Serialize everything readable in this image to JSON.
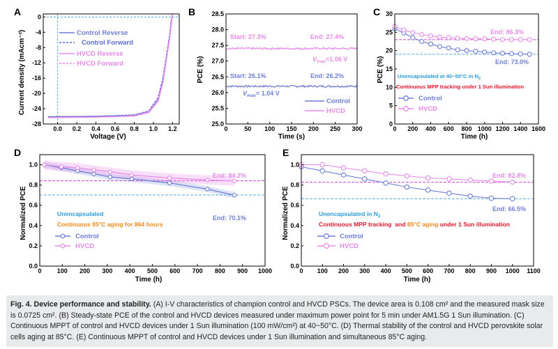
{
  "figure": {
    "caption": {
      "title": "Fig. 4. Device performance and stability.",
      "text": "(A) I-V characteristics of champion control and HVCD PSCs. The device area is 0.108 cm² and the measured mask size is 0.0725 cm². (B) Steady-state PCE of the control and HVCD devices measured under maximum power point for 5 min under AM1.5G 1 Sun illumination. (C) Continuous MPPT of control and HVCD devices under 1 Sun illumination (100 mW/cm²) at 40~50°C. (D) Thermal stability of the control and HVCD perovskite solar cells aging at 85°C. (E) Continuous MPPT of control and HVCD devices under 1 Sun illumination and simultaneous 85°C aging."
    },
    "colors": {
      "control": "#6f7fd6",
      "hvcd": "#e58ae8",
      "control_ref": "#5aa9e6",
      "hvcd_ref": "#d93fd9",
      "note_blue": "#2b9bd8",
      "note_red": "#e0152b",
      "note_orange": "#f08a1c"
    }
  },
  "chart_data": [
    {
      "panel": "A",
      "type": "line",
      "xlabel": "Voltage (V)",
      "ylabel": "Current density (mAcm⁻²)",
      "xlim": [
        -0.15,
        1.27
      ],
      "ylim": [
        -28,
        0.8
      ],
      "xticks": [
        "0.0",
        "0.2",
        "0.4",
        "0.6",
        "0.8",
        "1.0",
        "1.2"
      ],
      "yticks": [
        "0",
        "-4",
        "-8",
        "-12",
        "-16",
        "-20",
        "-24",
        "-28"
      ],
      "legend": [
        "Control Reverse",
        "Control Forward",
        "HVCD Reverse",
        "HVCD Forward"
      ],
      "series": [
        {
          "name": "Control Reverse",
          "x": [
            -0.1,
            0.4,
            0.8,
            0.95,
            1.05,
            1.1,
            1.14,
            1.17,
            1.19,
            1.2
          ],
          "y": [
            -26.1,
            -26.0,
            -25.7,
            -24.8,
            -21.5,
            -16.5,
            -10,
            -5,
            -1,
            0.8
          ]
        },
        {
          "name": "Control Forward",
          "x": [
            -0.1,
            0.4,
            0.8,
            0.95,
            1.05,
            1.1,
            1.14,
            1.17,
            1.185,
            1.2
          ],
          "y": [
            -26.1,
            -26.0,
            -25.6,
            -24.6,
            -21.0,
            -15.8,
            -9.5,
            -4.5,
            -1,
            0.8
          ]
        },
        {
          "name": "HVCD Reverse",
          "x": [
            -0.1,
            0.4,
            0.8,
            0.95,
            1.05,
            1.1,
            1.14,
            1.17,
            1.19,
            1.2
          ],
          "y": [
            -26.3,
            -26.2,
            -25.9,
            -25.0,
            -22.0,
            -17.0,
            -10.5,
            -5.5,
            -1.2,
            0.8
          ]
        },
        {
          "name": "HVCD Forward",
          "x": [
            -0.1,
            0.4,
            0.8,
            0.95,
            1.05,
            1.1,
            1.14,
            1.17,
            1.185,
            1.2
          ],
          "y": [
            -26.3,
            -26.2,
            -25.8,
            -24.8,
            -21.5,
            -16.5,
            -10,
            -5,
            -1.1,
            0.8
          ]
        }
      ]
    },
    {
      "panel": "B",
      "type": "line",
      "xlabel": "Time (s)",
      "ylabel": "PCE (%)",
      "xlim": [
        0,
        300
      ],
      "ylim": [
        25.0,
        28.5
      ],
      "xticks": [
        "0",
        "50",
        "100",
        "150",
        "200",
        "250",
        "300"
      ],
      "yticks": [
        "25.0",
        "25.5",
        "26.0",
        "26.5",
        "27.0",
        "27.5",
        "28.0",
        "28.5"
      ],
      "legend": [
        "Control",
        "HVCD"
      ],
      "series": [
        {
          "name": "Control",
          "level": 26.2
        },
        {
          "name": "HVCD",
          "level": 27.4
        }
      ],
      "annotations": {
        "hvcd_start": "Start: 27.3%",
        "hvcd_end": "End: 27.4%",
        "hvcd_vmax_v": "V",
        "hvcd_vmax_sub": "max",
        "hvcd_vmax_val": "=1.06 V",
        "control_start": "Start: 26.1%",
        "control_end": "End: 26.2%",
        "control_vmax_v": "V",
        "control_vmax_sub": "max",
        "control_vmax_val": "= 1.04 V"
      }
    },
    {
      "panel": "C",
      "type": "scatter",
      "xlabel": "Time (h)",
      "ylabel": "PCE (%)",
      "xlim": [
        0,
        1600
      ],
      "ylim": [
        0,
        30
      ],
      "xticks": [
        "0",
        "200",
        "400",
        "600",
        "800",
        "1000",
        "1200",
        "1400",
        "1600"
      ],
      "yticks": [
        "0",
        "5",
        "10",
        "15",
        "20",
        "25",
        "30"
      ],
      "legend": [
        "Control",
        "HVCD"
      ],
      "series": [
        {
          "name": "Control",
          "x": [
            0,
            100,
            200,
            300,
            400,
            500,
            600,
            700,
            800,
            900,
            1000,
            1100,
            1200,
            1300,
            1400,
            1500
          ],
          "y": [
            26.0,
            24.8,
            23.5,
            22.5,
            21.8,
            21.1,
            20.7,
            20.2,
            20.0,
            19.8,
            19.6,
            19.4,
            19.3,
            19.2,
            19.1,
            19.0
          ]
        },
        {
          "name": "HVCD",
          "x": [
            0,
            100,
            200,
            300,
            400,
            500,
            600,
            700,
            800,
            900,
            1000,
            1100,
            1200,
            1300,
            1400,
            1500
          ],
          "y": [
            26.6,
            25.6,
            24.9,
            24.4,
            24.0,
            23.7,
            23.5,
            23.4,
            23.3,
            23.2,
            23.2,
            23.1,
            23.0,
            23.0,
            23.0,
            23.0
          ]
        }
      ],
      "reference_lines": {
        "hvcd": 23.0,
        "control": 19.0
      },
      "annotations": {
        "hvcd_end": "End: 86.3%",
        "control_end": "End: 73.0%",
        "note1_pre": "Unencapsulated at 40~50°C in N",
        "note1_sub": "2",
        "note2": "Continuous MPP tracking under 1 Sun illumination"
      }
    },
    {
      "panel": "D",
      "type": "line",
      "xlabel": "Time (h)",
      "ylabel": "Normalized PCE",
      "xlim": [
        0,
        1000
      ],
      "ylim": [
        0.0,
        1.1
      ],
      "xticks": [
        "0",
        "100",
        "200",
        "300",
        "400",
        "500",
        "600",
        "700",
        "800",
        "900",
        "1000"
      ],
      "yticks": [
        "0.0",
        "0.2",
        "0.4",
        "0.6",
        "0.8",
        "1.0"
      ],
      "legend": [
        "Control",
        "HVCD"
      ],
      "series": [
        {
          "name": "Control",
          "x": [
            20,
            96,
            168,
            240,
            312,
            408,
            576,
            744,
            864
          ],
          "y": [
            1.0,
            0.97,
            0.94,
            0.91,
            0.88,
            0.86,
            0.82,
            0.76,
            0.7
          ],
          "band": 0.03
        },
        {
          "name": "HVCD",
          "x": [
            20,
            96,
            168,
            240,
            312,
            408,
            576,
            744,
            864
          ],
          "y": [
            1.0,
            0.98,
            0.97,
            0.95,
            0.93,
            0.9,
            0.87,
            0.85,
            0.84
          ],
          "band": 0.045
        }
      ],
      "reference_lines": {
        "hvcd": 0.842,
        "control": 0.701
      },
      "annotations": {
        "hvcd_end": "End: 84.2%",
        "control_end": "End: 70.1%",
        "note1": "Unencapsulated",
        "note2": "Continuous 85°C aging for 864 hours"
      }
    },
    {
      "panel": "E",
      "type": "scatter",
      "xlabel": "Time (h)",
      "ylabel": "Normalized PCE",
      "xlim": [
        0,
        1100
      ],
      "ylim": [
        0.0,
        1.1
      ],
      "xticks": [
        "0",
        "100",
        "200",
        "300",
        "400",
        "500",
        "600",
        "700",
        "800",
        "900",
        "1000",
        "1100"
      ],
      "yticks": [
        "0.0",
        "0.2",
        "0.4",
        "0.6",
        "0.8",
        "1.0"
      ],
      "legend": [
        "Control",
        "HVCD"
      ],
      "series": [
        {
          "name": "Control",
          "x": [
            0,
            100,
            200,
            300,
            400,
            500,
            600,
            700,
            800,
            900,
            1000
          ],
          "y": [
            0.98,
            0.94,
            0.9,
            0.86,
            0.82,
            0.78,
            0.75,
            0.72,
            0.69,
            0.67,
            0.665
          ]
        },
        {
          "name": "HVCD",
          "x": [
            0,
            100,
            200,
            300,
            400,
            500,
            600,
            700,
            800,
            900,
            1000
          ],
          "y": [
            1.0,
            1.0,
            0.97,
            0.94,
            0.91,
            0.89,
            0.87,
            0.86,
            0.85,
            0.84,
            0.83
          ]
        }
      ],
      "reference_lines": {
        "hvcd": 0.828,
        "control": 0.665
      },
      "annotations": {
        "hvcd_end": "End: 82.8%",
        "control_end": "End: 66.5%",
        "note1_pre": "Unencapsulated in N",
        "note1_sub": "2",
        "note2a": "Continuous MPP tracking  and ",
        "note2b": "85°C aging",
        "note2c": " under 1 Sun illumination"
      }
    }
  ],
  "panel_labels": [
    "A",
    "B",
    "C",
    "D",
    "E"
  ]
}
